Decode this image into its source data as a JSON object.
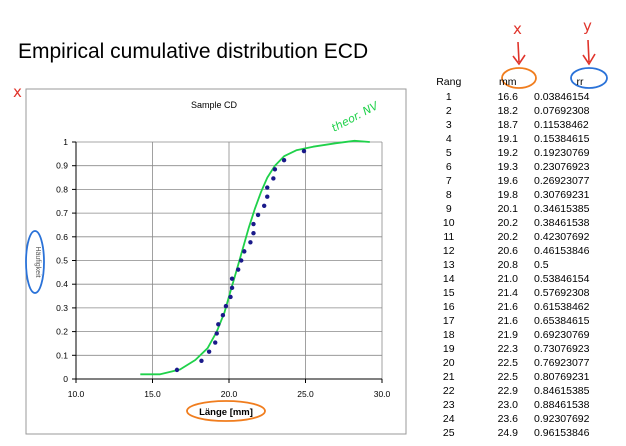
{
  "page": {
    "title": "Empirical cumulative distribution ECD",
    "colors": {
      "red_ink": "#e0342b",
      "green_ink": "#1fd14a",
      "orange_circle": "#f07d1e",
      "blue_circle": "#2a72d8",
      "points": "#1a1a8a"
    }
  },
  "handwriting": {
    "x_above_mm": "x",
    "y_above_rr": "y",
    "x_cross_left": "x",
    "theory_note": "theor. NV"
  },
  "table": {
    "headers": [
      "Rang",
      "mm",
      "rr"
    ],
    "rows": [
      [
        "1",
        "16.6",
        "0.03846154"
      ],
      [
        "2",
        "18.2",
        "0.07692308"
      ],
      [
        "3",
        "18.7",
        "0.11538462"
      ],
      [
        "4",
        "19.1",
        "0.15384615"
      ],
      [
        "5",
        "19.2",
        "0.19230769"
      ],
      [
        "6",
        "19.3",
        "0.23076923"
      ],
      [
        "7",
        "19.6",
        "0.26923077"
      ],
      [
        "8",
        "19.8",
        "0.30769231"
      ],
      [
        "9",
        "20.1",
        "0.34615385"
      ],
      [
        "10",
        "20.2",
        "0.38461538"
      ],
      [
        "11",
        "20.2",
        "0.42307692"
      ],
      [
        "12",
        "20.6",
        "0.46153846"
      ],
      [
        "13",
        "20.8",
        "0.5"
      ],
      [
        "14",
        "21.0",
        "0.53846154"
      ],
      [
        "15",
        "21.4",
        "0.57692308"
      ],
      [
        "16",
        "21.6",
        "0.61538462"
      ],
      [
        "17",
        "21.6",
        "0.65384615"
      ],
      [
        "18",
        "21.9",
        "0.69230769"
      ],
      [
        "19",
        "22.3",
        "0.73076923"
      ],
      [
        "20",
        "22.5",
        "0.76923077"
      ],
      [
        "21",
        "22.5",
        "0.80769231"
      ],
      [
        "22",
        "22.9",
        "0.84615385"
      ],
      [
        "23",
        "23.0",
        "0.88461538"
      ],
      [
        "24",
        "23.6",
        "0.92307692"
      ],
      [
        "25",
        "24.9",
        "0.96153846"
      ]
    ]
  },
  "chart_data": {
    "type": "scatter",
    "title": "Sample CD",
    "xlabel": "Länge [mm]",
    "ylabel": "Häufigkeit",
    "xlim": [
      10.0,
      30.0
    ],
    "ylim": [
      0,
      1
    ],
    "x_ticks": [
      "10.0",
      "15.0",
      "20.0",
      "25.0",
      "30.0"
    ],
    "y_ticks": [
      "0",
      "0.1",
      "0.2",
      "0.3",
      "0.4",
      "0.5",
      "0.6",
      "0.7",
      "0.8",
      "0.9",
      "1"
    ],
    "grid": true,
    "series": [
      {
        "name": "",
        "x": [
          16.6,
          18.2,
          18.7,
          19.1,
          19.2,
          19.3,
          19.6,
          19.8,
          20.1,
          20.2,
          20.2,
          20.6,
          20.8,
          21.0,
          21.4,
          21.6,
          21.6,
          21.9,
          22.3,
          22.5,
          22.5,
          22.9,
          23.0,
          23.6,
          24.9
        ],
        "y": [
          0.03846154,
          0.07692308,
          0.11538462,
          0.15384615,
          0.19230769,
          0.23076923,
          0.26923077,
          0.30769231,
          0.34615385,
          0.38461538,
          0.42307692,
          0.46153846,
          0.5,
          0.53846154,
          0.57692308,
          0.61538462,
          0.65384615,
          0.69230769,
          0.73076923,
          0.76923077,
          0.80769231,
          0.84615385,
          0.88461538,
          0.92307692,
          0.96153846
        ]
      }
    ],
    "theoretical_curve": {
      "x": [
        14.2,
        15.5,
        16.8,
        17.8,
        18.6,
        19.2,
        19.7,
        20.1,
        20.5,
        20.9,
        21.3,
        21.7,
        22.1,
        22.5,
        23.0,
        23.6,
        24.4,
        25.5,
        27.0,
        28.2,
        29.2
      ],
      "y": [
        0.02,
        0.02,
        0.04,
        0.08,
        0.13,
        0.2,
        0.28,
        0.37,
        0.46,
        0.55,
        0.64,
        0.72,
        0.79,
        0.85,
        0.9,
        0.94,
        0.965,
        0.98,
        0.995,
        1.005,
        1.0
      ]
    }
  }
}
